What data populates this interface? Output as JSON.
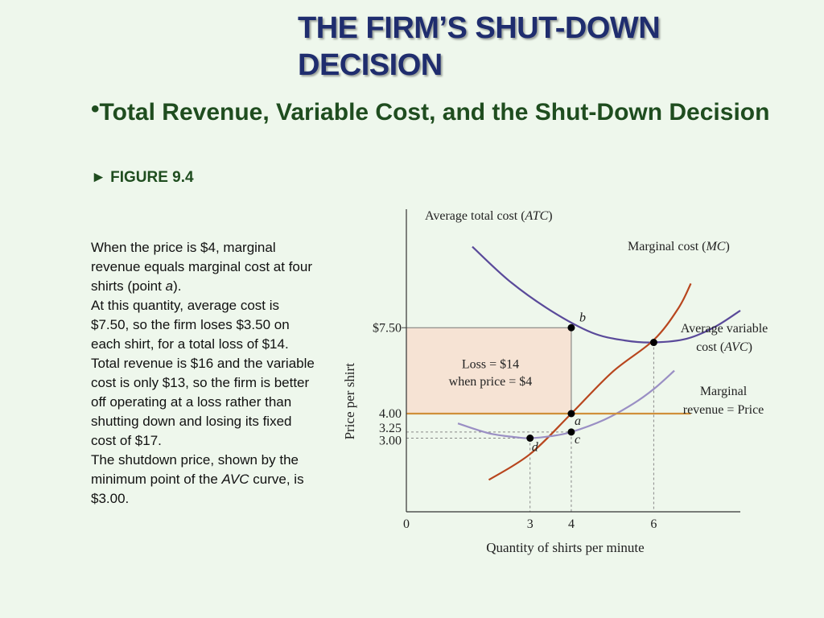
{
  "slide": {
    "title": "THE FIRM’S SHUT-DOWN DECISION",
    "bullet": "•",
    "subtitle": "Total Revenue, Variable Cost, and the Shut-Down Decision",
    "figure_ref": "► FIGURE 9.4"
  },
  "caption": {
    "p1_before": "When the price is $4, marginal revenue equals marginal cost at four shirts (point ",
    "p1_italic": "a",
    "p1_after": ").",
    "p2": "At this quantity, average cost is $7.50, so the firm loses $3.50 on each shirt, for a total loss of $14. Total revenue is $16 and the variable cost is only $13, so the firm is better off operating at a loss rather than shutting down and losing its fixed cost of $17.",
    "p3_before": "The shutdown price, shown by the minimum point of the ",
    "p3_italic": "AVC",
    "p3_after": " curve, is $3.00."
  },
  "colors": {
    "title": "#1f2d6e",
    "subtitle": "#1f4d1f",
    "background": "#eef7ec",
    "atc": "#5a4a9a",
    "mc": "#b8461e",
    "avc": "#9a8fc4",
    "mr": "#d0903a",
    "loss_fill": "#f6e3d4"
  },
  "chart_data": {
    "type": "line",
    "xlabel": "Quantity of shirts per minute",
    "ylabel": "Price per shirt",
    "x_ticks": [
      {
        "value": 0,
        "label": "0"
      },
      {
        "value": 3,
        "label": "3"
      },
      {
        "value": 4,
        "label": "4"
      },
      {
        "value": 6,
        "label": "6"
      }
    ],
    "y_ticks": [
      {
        "value": 7.5,
        "label": "$7.50"
      },
      {
        "value": 4.0,
        "label": "4.00"
      },
      {
        "value": 3.25,
        "label": "3.25"
      },
      {
        "value": 3.0,
        "label": "3.00"
      }
    ],
    "xlim": [
      0,
      8.1
    ],
    "ylim": [
      0,
      12
    ],
    "grid": false,
    "series": [
      {
        "key": "atc",
        "label_main": "Average total cost (",
        "label_italic": "ATC",
        "label_end": ")",
        "x": [
          1.6,
          2.5,
          3.5,
          4.5,
          5.3,
          6.0,
          6.8,
          7.5,
          8.1
        ],
        "y": [
          10.8,
          9.4,
          8.2,
          7.3,
          6.98,
          6.9,
          7.05,
          7.55,
          8.2
        ]
      },
      {
        "key": "mc",
        "label_main": "Marginal cost (",
        "label_italic": "MC",
        "label_end": ")",
        "x": [
          2.0,
          3.0,
          4.0,
          5.0,
          6.0,
          6.6,
          6.9
        ],
        "y": [
          1.3,
          2.35,
          4.0,
          5.7,
          7.0,
          8.3,
          9.3
        ]
      },
      {
        "key": "avc",
        "label_main": "Average variable",
        "label_main2": "cost (",
        "label_italic": "AVC",
        "label_end": ")",
        "x": [
          1.25,
          2.0,
          2.7,
          3.0,
          3.5,
          4.0,
          4.8,
          5.5,
          6.0,
          6.5
        ],
        "y": [
          3.6,
          3.2,
          3.03,
          3.0,
          3.08,
          3.25,
          3.75,
          4.4,
          5.0,
          5.75
        ]
      },
      {
        "key": "mr",
        "label_main": "Marginal",
        "label_main2": "revenue = Price",
        "x": [
          0,
          6.9
        ],
        "y": [
          4.0,
          4.0
        ]
      }
    ],
    "points": [
      {
        "label": "a",
        "x": 4,
        "y": 4.0
      },
      {
        "label": "b",
        "x": 4,
        "y": 7.5
      },
      {
        "label": "c",
        "x": 4,
        "y": 3.25
      },
      {
        "label": "d",
        "x": 3,
        "y": 3.0
      },
      {
        "label": "",
        "x": 6,
        "y": 6.9
      }
    ],
    "loss_box": {
      "x0": 0,
      "x1": 4,
      "y0": 4.0,
      "y1": 7.5,
      "label_line1": "Loss = $14",
      "label_line2": "when price = $4"
    }
  }
}
